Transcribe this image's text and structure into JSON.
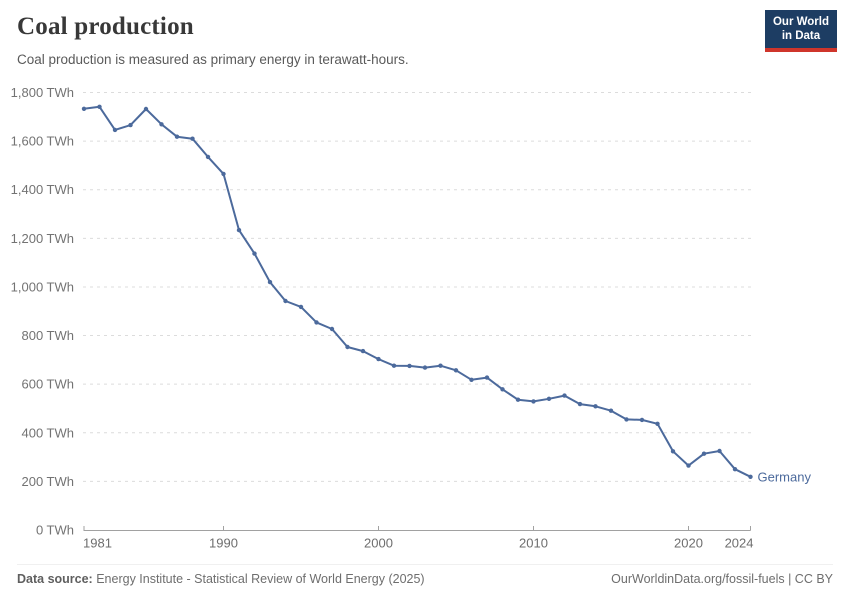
{
  "header": {
    "title": "Coal production",
    "subtitle": "Coal production is measured as primary energy in terawatt-hours."
  },
  "logo": {
    "line1": "Our World",
    "line2": "in Data",
    "bg_color": "#1d3d63",
    "accent_color": "#cf352b"
  },
  "footer": {
    "source_label": "Data source:",
    "source_text": " Energy Institute - Statistical Review of World Energy (2025)",
    "credit": "OurWorldinData.org/fossil-fuels | CC BY"
  },
  "chart_data": {
    "type": "line",
    "title": "Coal production",
    "subtitle": "Coal production is measured as primary energy in terawatt-hours.",
    "unit": "TWh",
    "x": [
      1981,
      1982,
      1983,
      1984,
      1985,
      1986,
      1987,
      1988,
      1989,
      1990,
      1991,
      1992,
      1993,
      1994,
      1995,
      1996,
      1997,
      1998,
      1999,
      2000,
      2001,
      2002,
      2003,
      2004,
      2005,
      2006,
      2007,
      2008,
      2009,
      2010,
      2011,
      2012,
      2013,
      2014,
      2015,
      2016,
      2017,
      2018,
      2019,
      2020,
      2021,
      2022,
      2023,
      2024
    ],
    "series": [
      {
        "name": "Germany",
        "color": "#4c6a9c",
        "values": [
          1733,
          1741,
          1646,
          1666,
          1732,
          1669,
          1618,
          1610,
          1535,
          1465,
          1234,
          1137,
          1020,
          942,
          918,
          854,
          827,
          753,
          736,
          703,
          676,
          675,
          668,
          676,
          657,
          618,
          627,
          579,
          536,
          529,
          540,
          553,
          518,
          509,
          491,
          455,
          453,
          437,
          324,
          265,
          314,
          325,
          250,
          219
        ]
      }
    ],
    "ylim": [
      0,
      1800
    ],
    "yticks": [
      0,
      200,
      400,
      600,
      800,
      1000,
      1200,
      1400,
      1600,
      1800
    ],
    "ytick_label_format": "#,### TWh",
    "xticks": [
      1981,
      1990,
      2000,
      2010,
      2020,
      2024
    ],
    "grid": "horizontal-dashed",
    "legend_position": "end-of-line",
    "colors": {
      "gridline": "#dcdcdc",
      "axis": "#a1a1a1",
      "tick_label": "#6e6e6e"
    }
  }
}
